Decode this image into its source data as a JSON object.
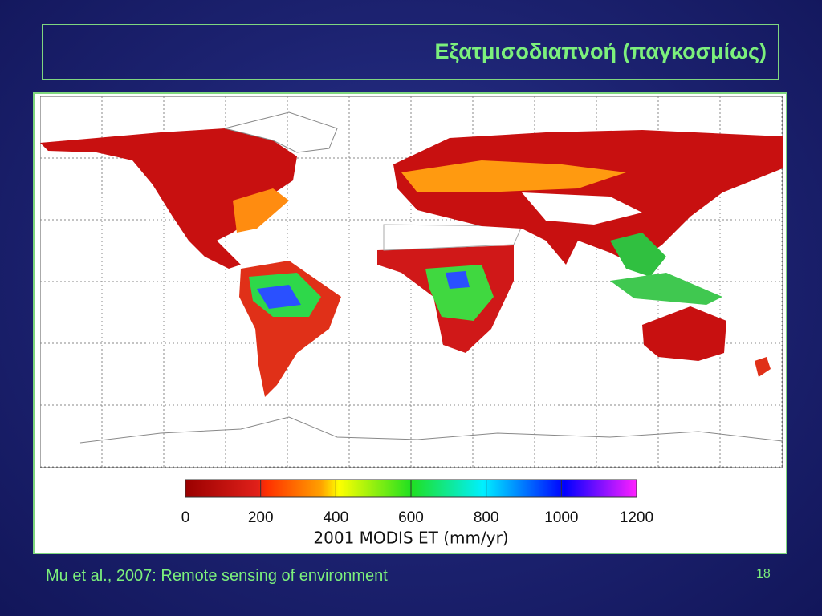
{
  "slide": {
    "title": "Εξατμισοδιαπνοή (παγκοσμίως)",
    "figure": {
      "colorbar_title": "2001 MODIS ET (mm/yr)",
      "colorbar_ticks": [
        0,
        200,
        400,
        600,
        800,
        1000,
        1200
      ]
    },
    "caption": "Mu et al., 2007: Remote sensing of environment",
    "page_number": "18"
  }
}
